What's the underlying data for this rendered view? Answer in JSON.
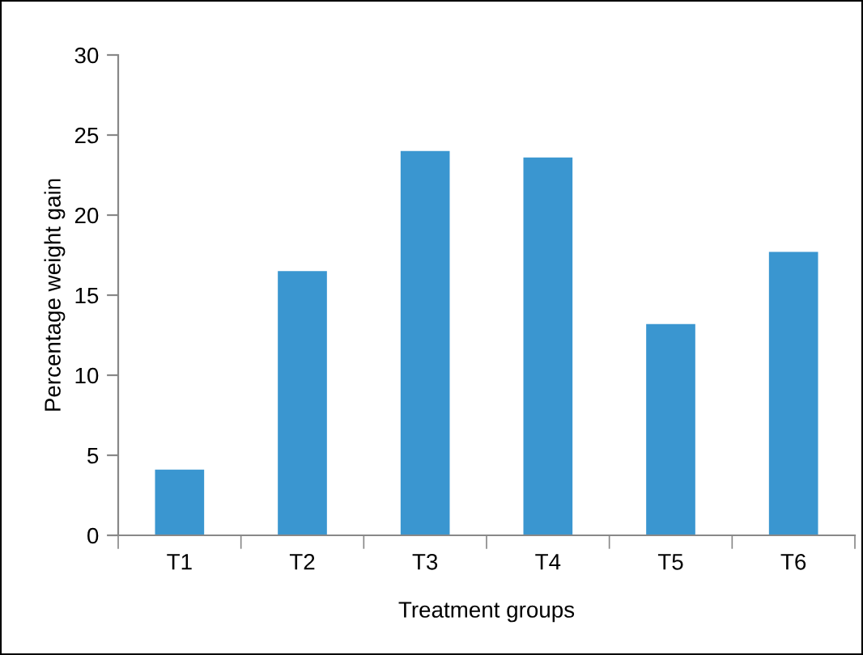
{
  "chart_data": {
    "type": "bar",
    "xlabel": "Treatment groups",
    "ylabel": "Percentage weight gain",
    "categories": [
      "T1",
      "T2",
      "T3",
      "T4",
      "T5",
      "T6"
    ],
    "values": [
      4.1,
      16.5,
      24.0,
      23.6,
      13.2,
      17.7
    ],
    "color": "#3a96d0",
    "ylim": [
      0,
      30
    ],
    "yticks": [
      0,
      5,
      10,
      15,
      20,
      25,
      30
    ],
    "grid": false,
    "legend": false
  }
}
